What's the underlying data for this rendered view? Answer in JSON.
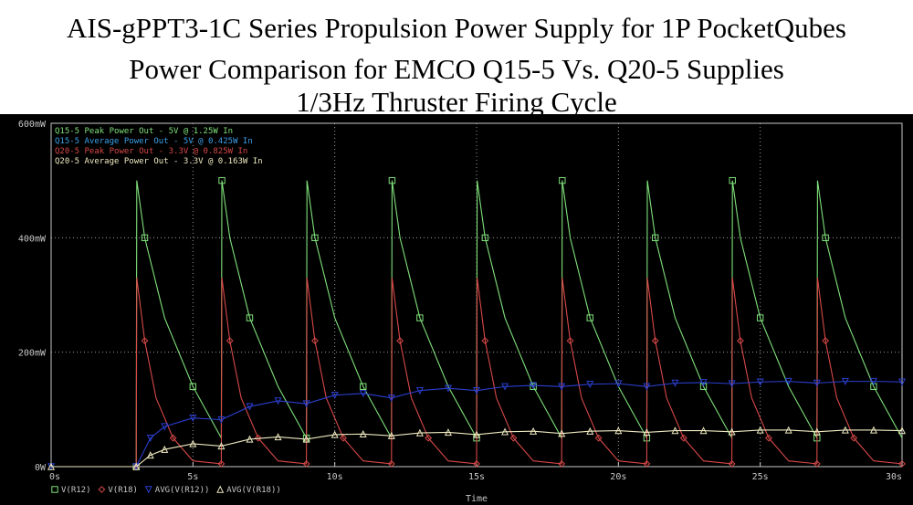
{
  "title_lines": [
    "AIS-gPPT3-1C Series Propulsion Power Supply for 1P PocketQubes",
    "Power Comparison for EMCO Q15-5 Vs. Q20-5 Supplies",
    "1/3Hz Thruster Firing Cycle"
  ],
  "colors": {
    "background": "#000000",
    "grid": "#9a9a9a",
    "axis_text": "#c8c8c8",
    "q15_peak": "#7fe07a",
    "q15_avg": "#2b3fd0",
    "q20_peak": "#d84848",
    "q20_avg": "#efe9c0"
  },
  "chart_data": {
    "type": "line",
    "xlabel": "Time",
    "ylabel": "",
    "x_ticks": [
      "0s",
      "5s",
      "10s",
      "15s",
      "20s",
      "25s",
      "30s"
    ],
    "y_ticks": [
      "0W",
      "200mW",
      "400mW",
      "600mW"
    ],
    "xlim": [
      0,
      30
    ],
    "ylim": [
      0,
      0.6
    ],
    "grid": true,
    "annotations": [
      {
        "text": "Q15-5 Peak Power Out - 5V @ 1.25W In",
        "color": "#7fe07a"
      },
      {
        "text": "Q15-5 Average Power Out - 5V @ 0.425W In",
        "color": "#3aa0e8"
      },
      {
        "text": "Q20-5 Peak Power Out - 3.3V @ 0.825W In",
        "color": "#d84848"
      },
      {
        "text": "Q20-5 Average Power Out - 3.3V @ 0.163W In",
        "color": "#efe9c0"
      }
    ],
    "legend_position": "bottom-left",
    "series": [
      {
        "name": "V(R12)",
        "marker": "square",
        "x": [
          0,
          3,
          3.02,
          3.3,
          4,
          5,
          6,
          6.02,
          6.3,
          7,
          8,
          9,
          9.02,
          9.3,
          10,
          11,
          12,
          12.02,
          12.3,
          13,
          14,
          15,
          15.02,
          15.3,
          16,
          17,
          18,
          18.02,
          18.3,
          19,
          20,
          21,
          21.02,
          21.3,
          22,
          23,
          24,
          24.02,
          24.3,
          25,
          26,
          27,
          27.02,
          27.3,
          28,
          29,
          30
        ],
        "values": [
          0,
          0,
          0.5,
          0.4,
          0.26,
          0.14,
          0.05,
          0.5,
          0.4,
          0.26,
          0.14,
          0.05,
          0.5,
          0.4,
          0.26,
          0.14,
          0.05,
          0.5,
          0.4,
          0.26,
          0.14,
          0.05,
          0.5,
          0.4,
          0.26,
          0.14,
          0.05,
          0.5,
          0.4,
          0.26,
          0.14,
          0.05,
          0.5,
          0.4,
          0.26,
          0.14,
          0.05,
          0.5,
          0.4,
          0.26,
          0.14,
          0.05,
          0.5,
          0.4,
          0.26,
          0.14,
          0.05
        ]
      },
      {
        "name": "V(R18)",
        "marker": "diamond",
        "x": [
          0,
          3,
          3.02,
          3.3,
          3.7,
          4.3,
          5,
          6,
          6.02,
          6.3,
          6.7,
          7.3,
          8,
          9,
          9.02,
          9.3,
          9.7,
          10.3,
          11,
          12,
          12.02,
          12.3,
          12.7,
          13.3,
          14,
          15,
          15.02,
          15.3,
          15.7,
          16.3,
          17,
          18,
          18.02,
          18.3,
          18.7,
          19.3,
          20,
          21,
          21.02,
          21.3,
          21.7,
          22.3,
          23,
          24,
          24.02,
          24.3,
          24.7,
          25.3,
          26,
          27,
          27.02,
          27.3,
          27.7,
          28.3,
          29,
          30
        ],
        "values": [
          0,
          0,
          0.33,
          0.22,
          0.12,
          0.05,
          0.01,
          0.005,
          0.33,
          0.22,
          0.12,
          0.05,
          0.01,
          0.005,
          0.33,
          0.22,
          0.12,
          0.05,
          0.01,
          0.005,
          0.33,
          0.22,
          0.12,
          0.05,
          0.01,
          0.005,
          0.33,
          0.22,
          0.12,
          0.05,
          0.01,
          0.005,
          0.33,
          0.22,
          0.12,
          0.05,
          0.01,
          0.005,
          0.33,
          0.22,
          0.12,
          0.05,
          0.01,
          0.005,
          0.33,
          0.22,
          0.12,
          0.05,
          0.01,
          0.005,
          0.33,
          0.22,
          0.12,
          0.05,
          0.01,
          0.005
        ]
      },
      {
        "name": "AVG(V(R12))",
        "marker": "triangle-down",
        "x": [
          0,
          3,
          3.5,
          4,
          5,
          6,
          7,
          8,
          9,
          10,
          11,
          12,
          13,
          14,
          15,
          16,
          17,
          18,
          19,
          20,
          21,
          22,
          23,
          24,
          25,
          26,
          27,
          28,
          29,
          30
        ],
        "values": [
          0,
          0,
          0.05,
          0.07,
          0.085,
          0.082,
          0.105,
          0.115,
          0.11,
          0.125,
          0.128,
          0.12,
          0.133,
          0.137,
          0.133,
          0.14,
          0.142,
          0.14,
          0.144,
          0.145,
          0.14,
          0.146,
          0.147,
          0.145,
          0.148,
          0.149,
          0.146,
          0.149,
          0.149,
          0.148
        ]
      },
      {
        "name": "AVG(V(R18))",
        "marker": "triangle-up",
        "x": [
          0,
          3,
          3.5,
          4,
          5,
          6,
          7,
          8,
          9,
          10,
          11,
          12,
          13,
          14,
          15,
          16,
          17,
          18,
          19,
          20,
          21,
          22,
          23,
          24,
          25,
          26,
          27,
          28,
          29,
          30
        ],
        "values": [
          0,
          0,
          0.02,
          0.03,
          0.04,
          0.036,
          0.048,
          0.052,
          0.048,
          0.056,
          0.057,
          0.054,
          0.059,
          0.06,
          0.056,
          0.061,
          0.062,
          0.058,
          0.062,
          0.063,
          0.06,
          0.063,
          0.063,
          0.061,
          0.064,
          0.064,
          0.061,
          0.064,
          0.064,
          0.063
        ]
      }
    ]
  }
}
